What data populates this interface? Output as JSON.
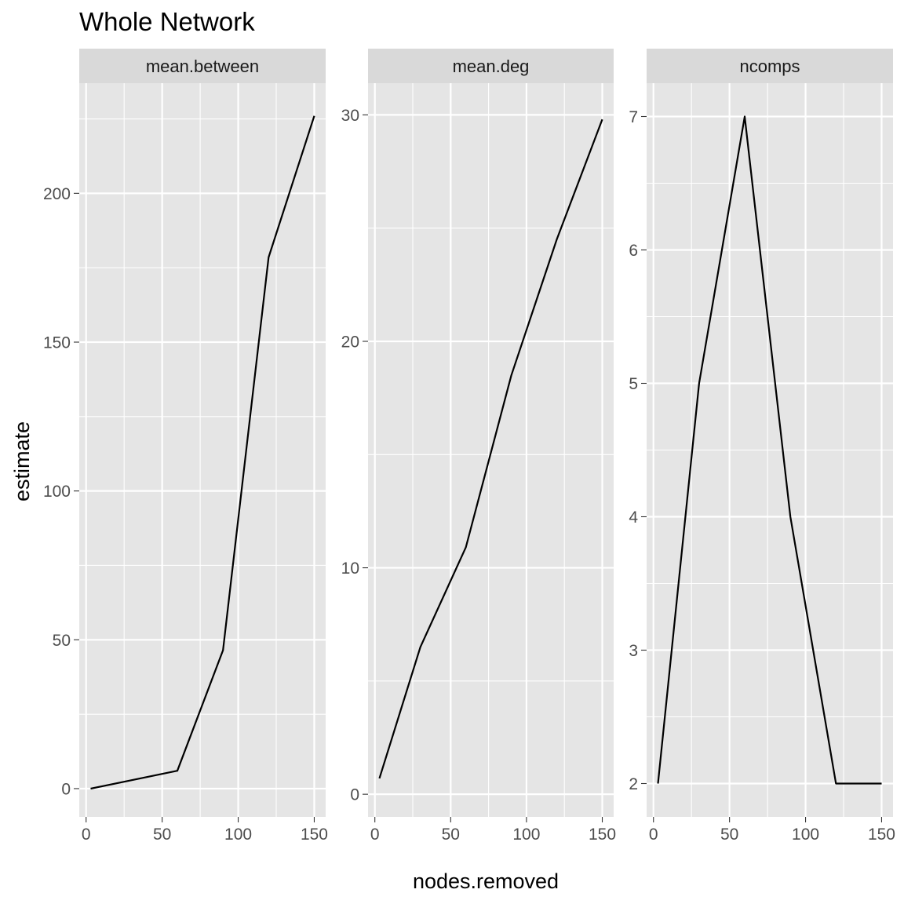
{
  "chart_data": {
    "type": "line",
    "title": "Whole Network",
    "xlabel": "nodes.removed",
    "ylabel": "estimate",
    "grid": true,
    "legend": "none",
    "colors": {
      "panel_background": "#e5e5e5",
      "strip_background": "#d9d9d9",
      "grid_line": "#ffffff",
      "line": "#000000"
    },
    "x_ticks": [
      0,
      50,
      100,
      150
    ],
    "x_tick_labels": [
      "0",
      "50",
      "100",
      "150"
    ],
    "xlim": [
      -4.5,
      157.5
    ],
    "panels": [
      {
        "strip": "mean.between",
        "ylim": [
          -9.5,
          237
        ],
        "y_ticks": [
          0,
          50,
          100,
          150,
          200
        ],
        "y_tick_labels": [
          "0",
          "50",
          "100",
          "150",
          "200"
        ],
        "x": [
          3,
          60,
          90,
          120,
          150
        ],
        "y": [
          0,
          6,
          46.5,
          178.5,
          226
        ]
      },
      {
        "strip": "mean.deg",
        "ylim": [
          -1,
          31.4
        ],
        "y_ticks": [
          0,
          10,
          20,
          30
        ],
        "y_tick_labels": [
          "0",
          "10",
          "20",
          "30"
        ],
        "x": [
          3,
          30,
          60,
          90,
          120,
          150
        ],
        "y": [
          0.7,
          6.5,
          10.9,
          18.5,
          24.5,
          29.8
        ]
      },
      {
        "strip": "ncomps",
        "ylim": [
          1.75,
          7.25
        ],
        "y_ticks": [
          2,
          3,
          4,
          5,
          6,
          7
        ],
        "y_tick_labels": [
          "2",
          "3",
          "4",
          "5",
          "6",
          "7"
        ],
        "x": [
          3,
          30,
          60,
          90,
          120,
          150
        ],
        "y": [
          2,
          5,
          7,
          4,
          2,
          2
        ]
      }
    ]
  }
}
